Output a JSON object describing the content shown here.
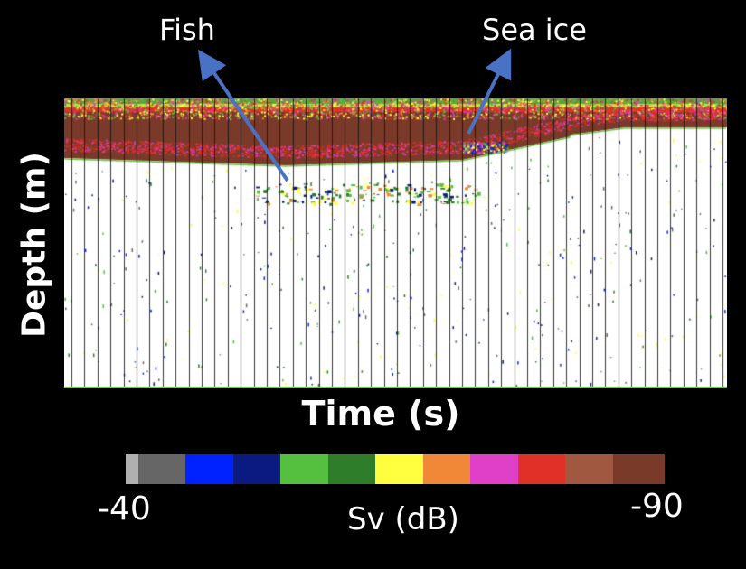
{
  "annotations": {
    "fish": "Fish",
    "sea_ice": "Sea ice"
  },
  "axes": {
    "ylabel": "Depth (m)",
    "xlabel": "Time (s)"
  },
  "colorbar": {
    "title": "Sv (dB)",
    "min_label": "-40",
    "max_label": "-90",
    "colors": [
      "#b0b0b0",
      "#666666",
      "#0022ff",
      "#0a1a80",
      "#55c040",
      "#2e7d2a",
      "#ffff40",
      "#f08838",
      "#e040c8",
      "#e03028",
      "#a05840",
      "#7a3a2a"
    ]
  },
  "styles": {
    "arrow_color": "#4a72c4",
    "background": "#000000",
    "text": "#ffffff"
  }
}
